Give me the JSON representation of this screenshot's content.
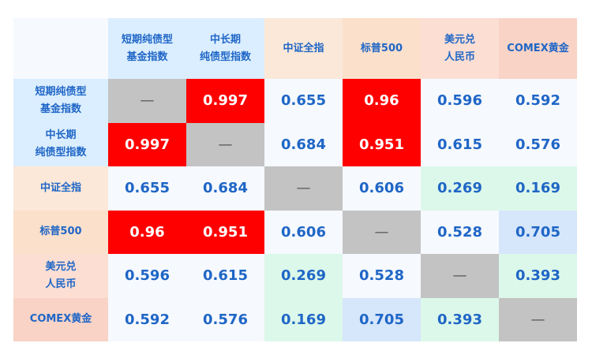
{
  "chart_data": {
    "type": "heatmap",
    "labels": [
      [
        "短期纯债型",
        "基金指数"
      ],
      [
        "中长期",
        "纯债型指数"
      ],
      [
        "中证全指"
      ],
      [
        "标普500"
      ],
      [
        "美元兑",
        "人民币"
      ],
      [
        "COMEX黄金"
      ]
    ],
    "label_colors": [
      "#dbeeff",
      "#dbeeff",
      "#fbe8d8",
      "#fbe0cc",
      "#fcded3",
      "#f8d3c6"
    ],
    "values": [
      [
        null,
        0.997,
        0.655,
        0.96,
        0.596,
        0.592
      ],
      [
        0.997,
        null,
        0.684,
        0.951,
        0.615,
        0.576
      ],
      [
        0.655,
        0.684,
        null,
        0.606,
        0.269,
        0.169
      ],
      [
        0.96,
        0.951,
        0.606,
        null,
        0.528,
        0.705
      ],
      [
        0.596,
        0.615,
        0.269,
        0.528,
        null,
        0.393
      ],
      [
        0.592,
        0.576,
        0.169,
        0.705,
        0.393,
        null
      ]
    ],
    "diagonal_text": "—",
    "colors": {
      "high": "#ff0000",
      "medium": "#d6e6fb",
      "low": "#dcf8ea",
      "default": "#f6f9fe",
      "diagonal": "#c3c3c3",
      "corner": "#f6f9fe"
    }
  }
}
